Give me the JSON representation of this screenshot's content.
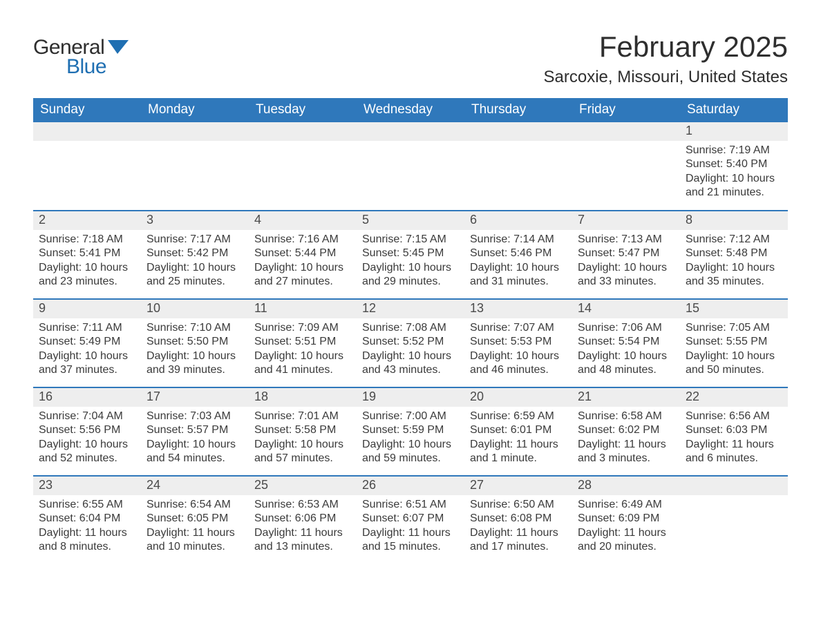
{
  "logo": {
    "word1": "General",
    "word2": "Blue"
  },
  "title": "February 2025",
  "location": "Sarcoxie, Missouri, United States",
  "colors": {
    "header_bg": "#2f78bb",
    "header_text": "#ffffff",
    "daynum_bg": "#eeeeee",
    "rule": "#2f78bb",
    "text": "#3a3a3a",
    "logo_blue": "#1f6fb2"
  },
  "weekdays": [
    "Sunday",
    "Monday",
    "Tuesday",
    "Wednesday",
    "Thursday",
    "Friday",
    "Saturday"
  ],
  "labels": {
    "sunrise": "Sunrise: ",
    "sunset": "Sunset: ",
    "daylight": "Daylight: "
  },
  "weeks": [
    [
      null,
      null,
      null,
      null,
      null,
      null,
      {
        "n": "1",
        "sunrise": "7:19 AM",
        "sunset": "5:40 PM",
        "daylight": "10 hours and 21 minutes."
      }
    ],
    [
      {
        "n": "2",
        "sunrise": "7:18 AM",
        "sunset": "5:41 PM",
        "daylight": "10 hours and 23 minutes."
      },
      {
        "n": "3",
        "sunrise": "7:17 AM",
        "sunset": "5:42 PM",
        "daylight": "10 hours and 25 minutes."
      },
      {
        "n": "4",
        "sunrise": "7:16 AM",
        "sunset": "5:44 PM",
        "daylight": "10 hours and 27 minutes."
      },
      {
        "n": "5",
        "sunrise": "7:15 AM",
        "sunset": "5:45 PM",
        "daylight": "10 hours and 29 minutes."
      },
      {
        "n": "6",
        "sunrise": "7:14 AM",
        "sunset": "5:46 PM",
        "daylight": "10 hours and 31 minutes."
      },
      {
        "n": "7",
        "sunrise": "7:13 AM",
        "sunset": "5:47 PM",
        "daylight": "10 hours and 33 minutes."
      },
      {
        "n": "8",
        "sunrise": "7:12 AM",
        "sunset": "5:48 PM",
        "daylight": "10 hours and 35 minutes."
      }
    ],
    [
      {
        "n": "9",
        "sunrise": "7:11 AM",
        "sunset": "5:49 PM",
        "daylight": "10 hours and 37 minutes."
      },
      {
        "n": "10",
        "sunrise": "7:10 AM",
        "sunset": "5:50 PM",
        "daylight": "10 hours and 39 minutes."
      },
      {
        "n": "11",
        "sunrise": "7:09 AM",
        "sunset": "5:51 PM",
        "daylight": "10 hours and 41 minutes."
      },
      {
        "n": "12",
        "sunrise": "7:08 AM",
        "sunset": "5:52 PM",
        "daylight": "10 hours and 43 minutes."
      },
      {
        "n": "13",
        "sunrise": "7:07 AM",
        "sunset": "5:53 PM",
        "daylight": "10 hours and 46 minutes."
      },
      {
        "n": "14",
        "sunrise": "7:06 AM",
        "sunset": "5:54 PM",
        "daylight": "10 hours and 48 minutes."
      },
      {
        "n": "15",
        "sunrise": "7:05 AM",
        "sunset": "5:55 PM",
        "daylight": "10 hours and 50 minutes."
      }
    ],
    [
      {
        "n": "16",
        "sunrise": "7:04 AM",
        "sunset": "5:56 PM",
        "daylight": "10 hours and 52 minutes."
      },
      {
        "n": "17",
        "sunrise": "7:03 AM",
        "sunset": "5:57 PM",
        "daylight": "10 hours and 54 minutes."
      },
      {
        "n": "18",
        "sunrise": "7:01 AM",
        "sunset": "5:58 PM",
        "daylight": "10 hours and 57 minutes."
      },
      {
        "n": "19",
        "sunrise": "7:00 AM",
        "sunset": "5:59 PM",
        "daylight": "10 hours and 59 minutes."
      },
      {
        "n": "20",
        "sunrise": "6:59 AM",
        "sunset": "6:01 PM",
        "daylight": "11 hours and 1 minute."
      },
      {
        "n": "21",
        "sunrise": "6:58 AM",
        "sunset": "6:02 PM",
        "daylight": "11 hours and 3 minutes."
      },
      {
        "n": "22",
        "sunrise": "6:56 AM",
        "sunset": "6:03 PM",
        "daylight": "11 hours and 6 minutes."
      }
    ],
    [
      {
        "n": "23",
        "sunrise": "6:55 AM",
        "sunset": "6:04 PM",
        "daylight": "11 hours and 8 minutes."
      },
      {
        "n": "24",
        "sunrise": "6:54 AM",
        "sunset": "6:05 PM",
        "daylight": "11 hours and 10 minutes."
      },
      {
        "n": "25",
        "sunrise": "6:53 AM",
        "sunset": "6:06 PM",
        "daylight": "11 hours and 13 minutes."
      },
      {
        "n": "26",
        "sunrise": "6:51 AM",
        "sunset": "6:07 PM",
        "daylight": "11 hours and 15 minutes."
      },
      {
        "n": "27",
        "sunrise": "6:50 AM",
        "sunset": "6:08 PM",
        "daylight": "11 hours and 17 minutes."
      },
      {
        "n": "28",
        "sunrise": "6:49 AM",
        "sunset": "6:09 PM",
        "daylight": "11 hours and 20 minutes."
      },
      null
    ]
  ]
}
